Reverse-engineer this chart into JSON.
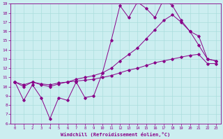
{
  "xlabel": "Windchill (Refroidissement éolien,°C)",
  "bg_color": "#cceef0",
  "line_color": "#880088",
  "grid_color": "#aadddd",
  "xlim": [
    -0.5,
    23.5
  ],
  "ylim": [
    6,
    19
  ],
  "xticks": [
    0,
    1,
    2,
    3,
    4,
    5,
    6,
    7,
    8,
    9,
    10,
    11,
    12,
    13,
    14,
    15,
    16,
    17,
    18,
    19,
    20,
    21,
    22,
    23
  ],
  "yticks": [
    6,
    7,
    8,
    9,
    10,
    11,
    12,
    13,
    14,
    15,
    16,
    17,
    18,
    19
  ],
  "line1_x": [
    0,
    1,
    2,
    3,
    4,
    5,
    6,
    7,
    8,
    9,
    10,
    11,
    12,
    13,
    14,
    15,
    16,
    17,
    18,
    19,
    20,
    21,
    22,
    23
  ],
  "line1_y": [
    10.5,
    8.5,
    10.2,
    8.8,
    6.5,
    8.8,
    8.5,
    10.5,
    8.8,
    9.0,
    11.5,
    15.0,
    18.8,
    17.5,
    19.2,
    18.5,
    17.5,
    19.5,
    18.8,
    17.2,
    16.0,
    14.5,
    13.0,
    12.8
  ],
  "line2_x": [
    0,
    1,
    2,
    3,
    4,
    5,
    6,
    7,
    8,
    9,
    10,
    11,
    12,
    13,
    14,
    15,
    16,
    17,
    18,
    19,
    20,
    21,
    22,
    23
  ],
  "line2_y": [
    10.5,
    10.0,
    10.5,
    10.2,
    10.0,
    10.3,
    10.5,
    10.8,
    11.0,
    11.2,
    11.5,
    12.0,
    12.8,
    13.5,
    14.2,
    15.2,
    16.2,
    17.2,
    17.8,
    17.0,
    16.0,
    15.5,
    13.0,
    12.8
  ],
  "line3_x": [
    0,
    1,
    2,
    3,
    4,
    5,
    6,
    7,
    8,
    9,
    10,
    11,
    12,
    13,
    14,
    15,
    16,
    17,
    18,
    19,
    20,
    21,
    22,
    23
  ],
  "line3_y": [
    10.5,
    10.2,
    10.5,
    10.3,
    10.2,
    10.4,
    10.5,
    10.6,
    10.7,
    10.8,
    11.0,
    11.2,
    11.5,
    11.8,
    12.0,
    12.3,
    12.6,
    12.8,
    13.0,
    13.2,
    13.4,
    13.5,
    12.5,
    12.5
  ]
}
